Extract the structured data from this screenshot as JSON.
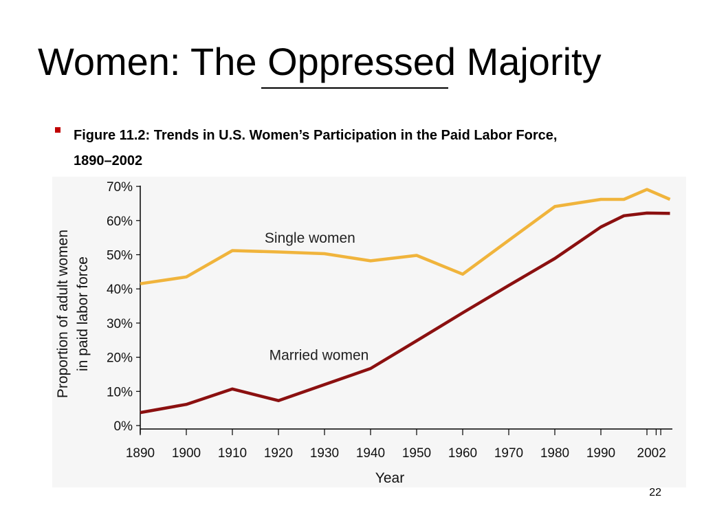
{
  "slide": {
    "title": "Women: The Oppressed Majority",
    "caption": "Figure 11.2: Trends in U.S. Women’s Participation in the Paid Labor Force, 1890–2002",
    "page_number": "22"
  },
  "chart_data": {
    "type": "line",
    "title": "",
    "xlabel": "Year",
    "ylabel": "Proportion of adult women in paid labor force",
    "ylabel_lines": [
      "Proportion of adult women",
      "in paid labor force"
    ],
    "xlim": [
      1890,
      2005
    ],
    "ylim": [
      0,
      70
    ],
    "x_ticks": [
      1890,
      1900,
      1910,
      1920,
      1930,
      1940,
      1950,
      1960,
      1970,
      1980,
      1990,
      2000,
      2002,
      2003
    ],
    "x_tick_labels": [
      {
        "year": 1890,
        "label": "1890"
      },
      {
        "year": 1900,
        "label": "1900"
      },
      {
        "year": 1910,
        "label": "1910"
      },
      {
        "year": 1920,
        "label": "1920"
      },
      {
        "year": 1930,
        "label": "1930"
      },
      {
        "year": 1940,
        "label": "1940"
      },
      {
        "year": 1950,
        "label": "1950"
      },
      {
        "year": 1960,
        "label": "1960"
      },
      {
        "year": 1970,
        "label": "1970"
      },
      {
        "year": 1980,
        "label": "1980"
      },
      {
        "year": 1990,
        "label": "1990"
      },
      {
        "year": 2001,
        "label": "2002"
      }
    ],
    "y_ticks": [
      0,
      10,
      20,
      30,
      40,
      50,
      60,
      70
    ],
    "y_tick_labels": [
      "0%",
      "10%",
      "20%",
      "30%",
      "40%",
      "50%",
      "60%",
      "70%"
    ],
    "grid": false,
    "series": [
      {
        "name": "Single women",
        "color": "#f0b43c",
        "x": [
          1890,
          1900,
          1910,
          1920,
          1930,
          1940,
          1950,
          1960,
          1970,
          1980,
          1990,
          1995,
          2000,
          2005
        ],
        "y": [
          41.5,
          43.5,
          51.2,
          50.8,
          50.3,
          48.2,
          49.8,
          44.3,
          54.2,
          64.1,
          66.2,
          66.2,
          69.1,
          66.2
        ]
      },
      {
        "name": "Married women",
        "color": "#8b1010",
        "x": [
          1890,
          1900,
          1910,
          1920,
          1930,
          1940,
          1950,
          1960,
          1970,
          1980,
          1990,
          1995,
          2000,
          2005
        ],
        "y": [
          3.8,
          6.2,
          10.7,
          7.3,
          12.0,
          16.7,
          24.8,
          33.0,
          41.0,
          48.9,
          58.1,
          61.4,
          62.2,
          62.1
        ]
      }
    ],
    "annotations": [
      {
        "text": "Single women",
        "series": "Single women",
        "x": 1917,
        "y": 53.5
      },
      {
        "text": "Married women",
        "series": "Married women",
        "x": 1918,
        "y": 19.2
      }
    ]
  }
}
